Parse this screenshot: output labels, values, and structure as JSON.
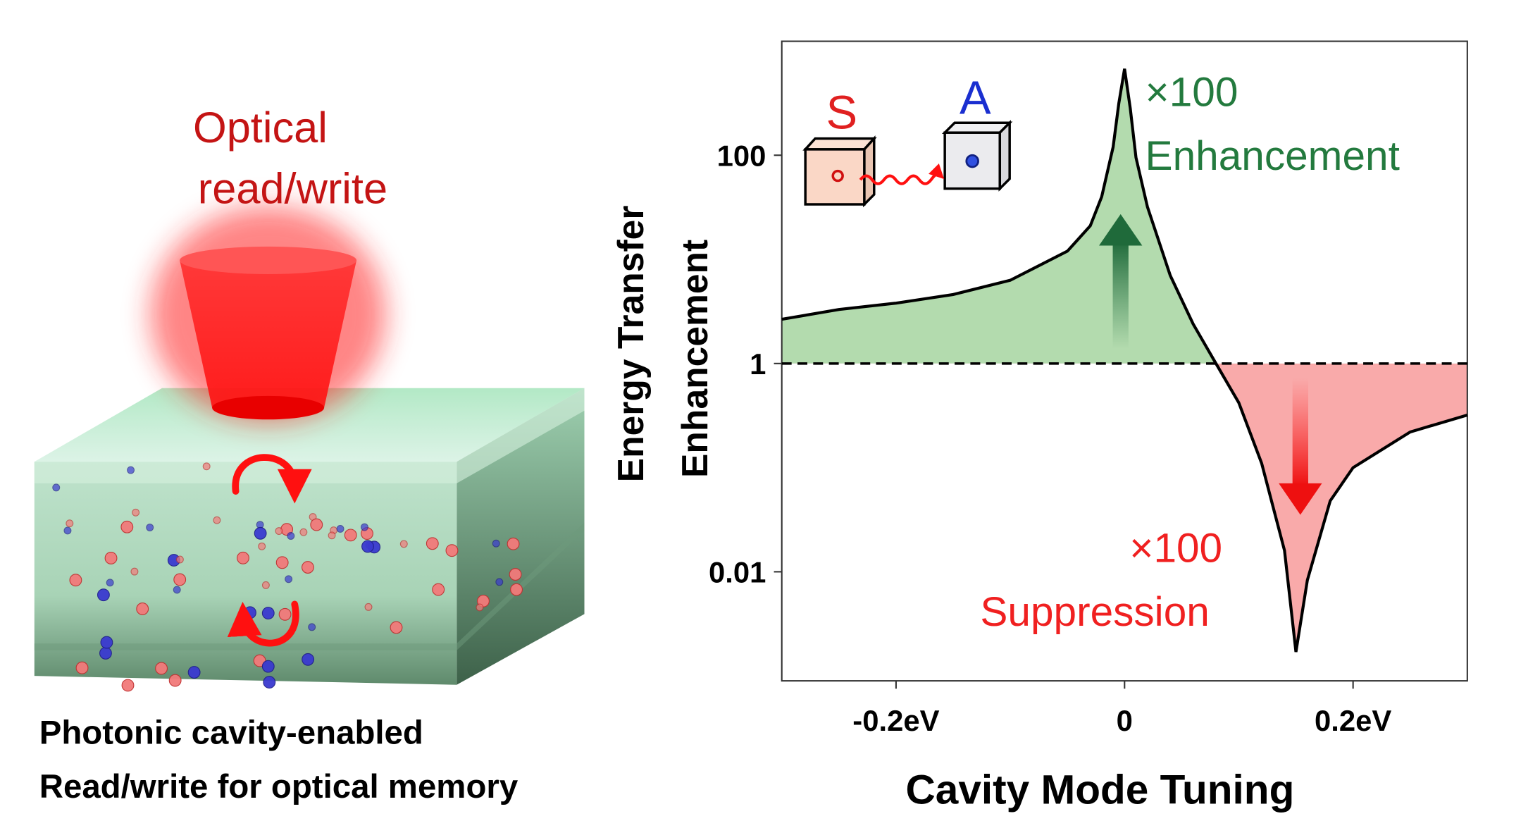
{
  "illustration": {
    "title_lines": [
      "Optical",
      "read/write"
    ],
    "caption_lines": [
      "Photonic cavity-enabled",
      "Read/write for optical memory"
    ]
  },
  "chart_data": {
    "type": "line",
    "xlabel": "Cavity Mode Tuning",
    "ylabel_lines": [
      "Energy Transfer",
      "Enhancement"
    ],
    "x": [
      -0.3,
      -0.25,
      -0.2,
      -0.15,
      -0.1,
      -0.05,
      -0.03,
      -0.02,
      -0.01,
      -0.005,
      0,
      0.005,
      0.01,
      0.02,
      0.04,
      0.06,
      0.08,
      0.1,
      0.12,
      0.14,
      0.15,
      0.16,
      0.18,
      0.2,
      0.25,
      0.3
    ],
    "series": [
      {
        "color": "#000000",
        "values": [
          2.66,
          3.3,
          3.8,
          4.6,
          6.3,
          12,
          21,
          40,
          120,
          316,
          676,
          282,
          95,
          32,
          7,
          2.4,
          1,
          0.42,
          0.11,
          0.016,
          0.0017,
          0.0083,
          0.048,
          0.1,
          0.22,
          0.32
        ]
      }
    ],
    "yscale": "log",
    "xlim": [
      -0.3,
      0.3
    ],
    "xticks": [
      {
        "value": -0.2,
        "label": "-0.2eV"
      },
      0,
      {
        "value": 0.2,
        "label": "0.2eV"
      }
    ],
    "ylim": [
      0.001,
      1000
    ],
    "yticks": [
      0.01,
      1,
      100
    ],
    "reference_line": 1,
    "fill_above_color": "#b3dbae",
    "fill_below_color": "#f9aaaa",
    "annotations": [
      {
        "text": "S",
        "color": "#e02020"
      },
      {
        "text": "A",
        "color": "#1a2fd0"
      },
      {
        "text": "×100",
        "color": "#237a3e"
      },
      {
        "text": "Enhancement",
        "color": "#237a3e"
      },
      {
        "text": "×100",
        "color": "#f02020"
      },
      {
        "text": "Suppression",
        "color": "#f02020"
      }
    ]
  }
}
